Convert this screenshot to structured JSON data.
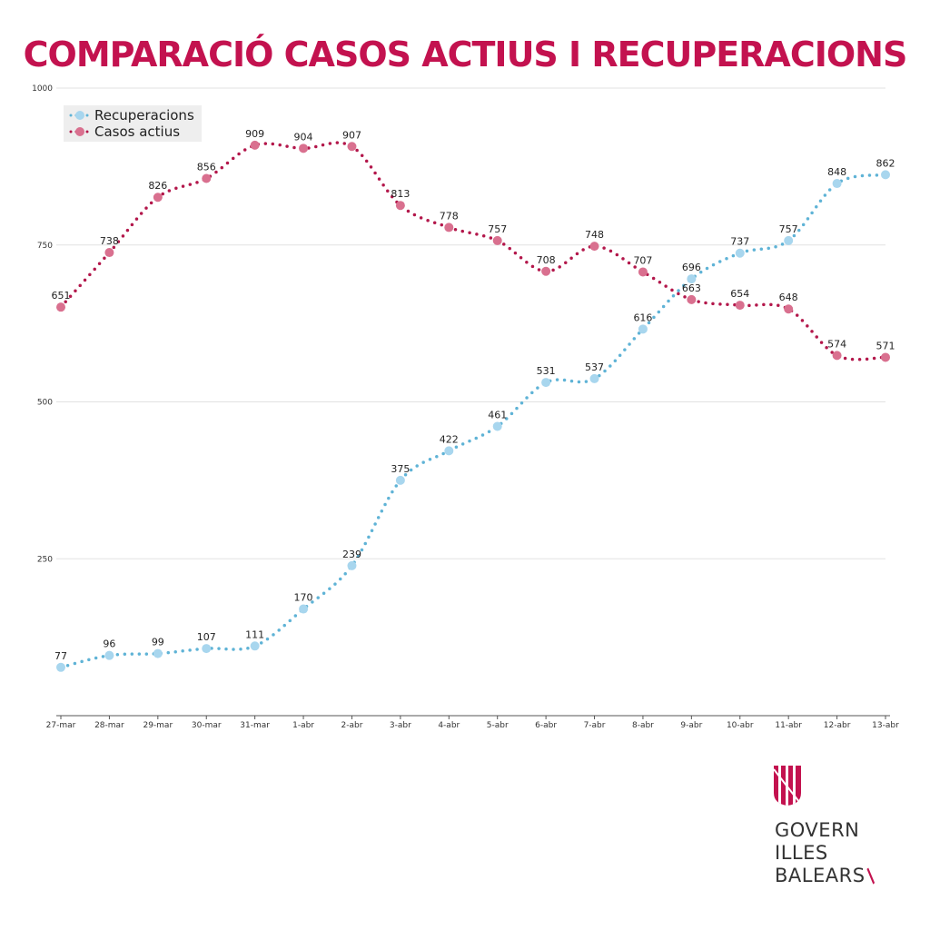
{
  "chart_data": {
    "type": "line",
    "title": "COMPARACIÓ CASOS ACTIUS I RECUPERACIONS",
    "xlabel": "",
    "ylabel": "",
    "ylim": [
      0,
      1000
    ],
    "yticks": [
      "250",
      "500",
      "750",
      "1000"
    ],
    "yticks_values": [
      250,
      500,
      750,
      1000
    ],
    "grid": true,
    "legend_position": "top-left",
    "categories": [
      "27-mar",
      "28-mar",
      "29-mar",
      "30-mar",
      "31-mar",
      "1-abr",
      "2-abr",
      "3-abr",
      "4-abr",
      "5-abr",
      "6-abr",
      "7-abr",
      "8-abr",
      "9-abr",
      "10-abr",
      "11-abr",
      "12-abr",
      "13-abr"
    ],
    "series": [
      {
        "name": "Recuperacions",
        "color": "#5fb3d6",
        "marker_color": "#a8d6ee",
        "values": [
          77,
          96,
          99,
          107,
          111,
          170,
          239,
          375,
          422,
          461,
          531,
          537,
          616,
          696,
          737,
          757,
          848,
          862
        ]
      },
      {
        "name": "Casos actius",
        "color": "#b3174b",
        "marker_color": "#d9708f",
        "values": [
          651,
          738,
          826,
          856,
          909,
          904,
          907,
          813,
          778,
          757,
          708,
          748,
          707,
          663,
          654,
          648,
          574,
          571
        ]
      }
    ]
  },
  "logo": {
    "lines": [
      "GOVERN",
      "ILLES",
      "BALEARS"
    ]
  }
}
